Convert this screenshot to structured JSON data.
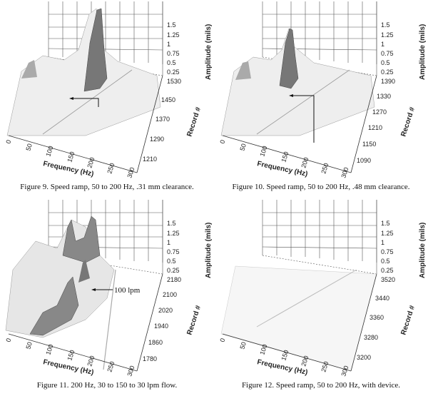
{
  "figures": [
    {
      "id": "fig9",
      "caption": "Figure 9.  Speed ramp, 50 to 200 Hz, .31 mm clearance.",
      "amp_ticks": [
        "1.5",
        "1.25",
        "1",
        "0.75",
        "0.5",
        "0.25"
      ],
      "freq_ticks": [
        "0",
        "50",
        "100",
        "150",
        "200",
        "250",
        "300"
      ],
      "record_ticks": [
        "1530",
        "1450",
        "1370",
        "1290",
        "1210"
      ],
      "amp_label": "Amplitude (mils)",
      "freq_label": "Frequency (Hz)",
      "record_label": "Record #",
      "annotation": ""
    },
    {
      "id": "fig10",
      "caption": "Figure 10.  Speed ramp, 50 to 200 Hz, .48 mm clearance.",
      "amp_ticks": [
        "1.5",
        "1.25",
        "1",
        "0.75",
        "0.5",
        "0.25"
      ],
      "freq_ticks": [
        "0",
        "50",
        "100",
        "150",
        "200",
        "250",
        "300"
      ],
      "record_ticks": [
        "1390",
        "1330",
        "1270",
        "1210",
        "1150",
        "1090"
      ],
      "amp_label": "Amplitude (mils)",
      "freq_label": "Frequency (Hz)",
      "record_label": "Record #",
      "annotation": ""
    },
    {
      "id": "fig11",
      "caption": "Figure 11.  200 Hz, 30 to 150 to 30 lpm flow.",
      "amp_ticks": [
        "1.5",
        "1.25",
        "1",
        "0.75",
        "0.5",
        "0.25"
      ],
      "freq_ticks": [
        "0",
        "50",
        "100",
        "150",
        "200",
        "250",
        "300"
      ],
      "record_ticks": [
        "2180",
        "2100",
        "2020",
        "1940",
        "1860",
        "1780"
      ],
      "amp_label": "Amplitude (mils)",
      "freq_label": "Frequency (Hz)",
      "record_label": "Record #",
      "annotation": "100 lpm"
    },
    {
      "id": "fig12",
      "caption": "Figure 12.  Speed ramp, 50 to 200 Hz, with device.",
      "amp_ticks": [
        "1.5",
        "1.25",
        "1",
        "0.75",
        "0.5",
        "0.25"
      ],
      "freq_ticks": [
        "0",
        "50",
        "100",
        "150",
        "200",
        "250",
        "300"
      ],
      "record_ticks": [
        "3520",
        "3440",
        "3360",
        "3280",
        "3200"
      ],
      "amp_label": "Amplitude (mils)",
      "freq_label": "Frequency (Hz)",
      "record_label": "Record #",
      "annotation": ""
    }
  ]
}
